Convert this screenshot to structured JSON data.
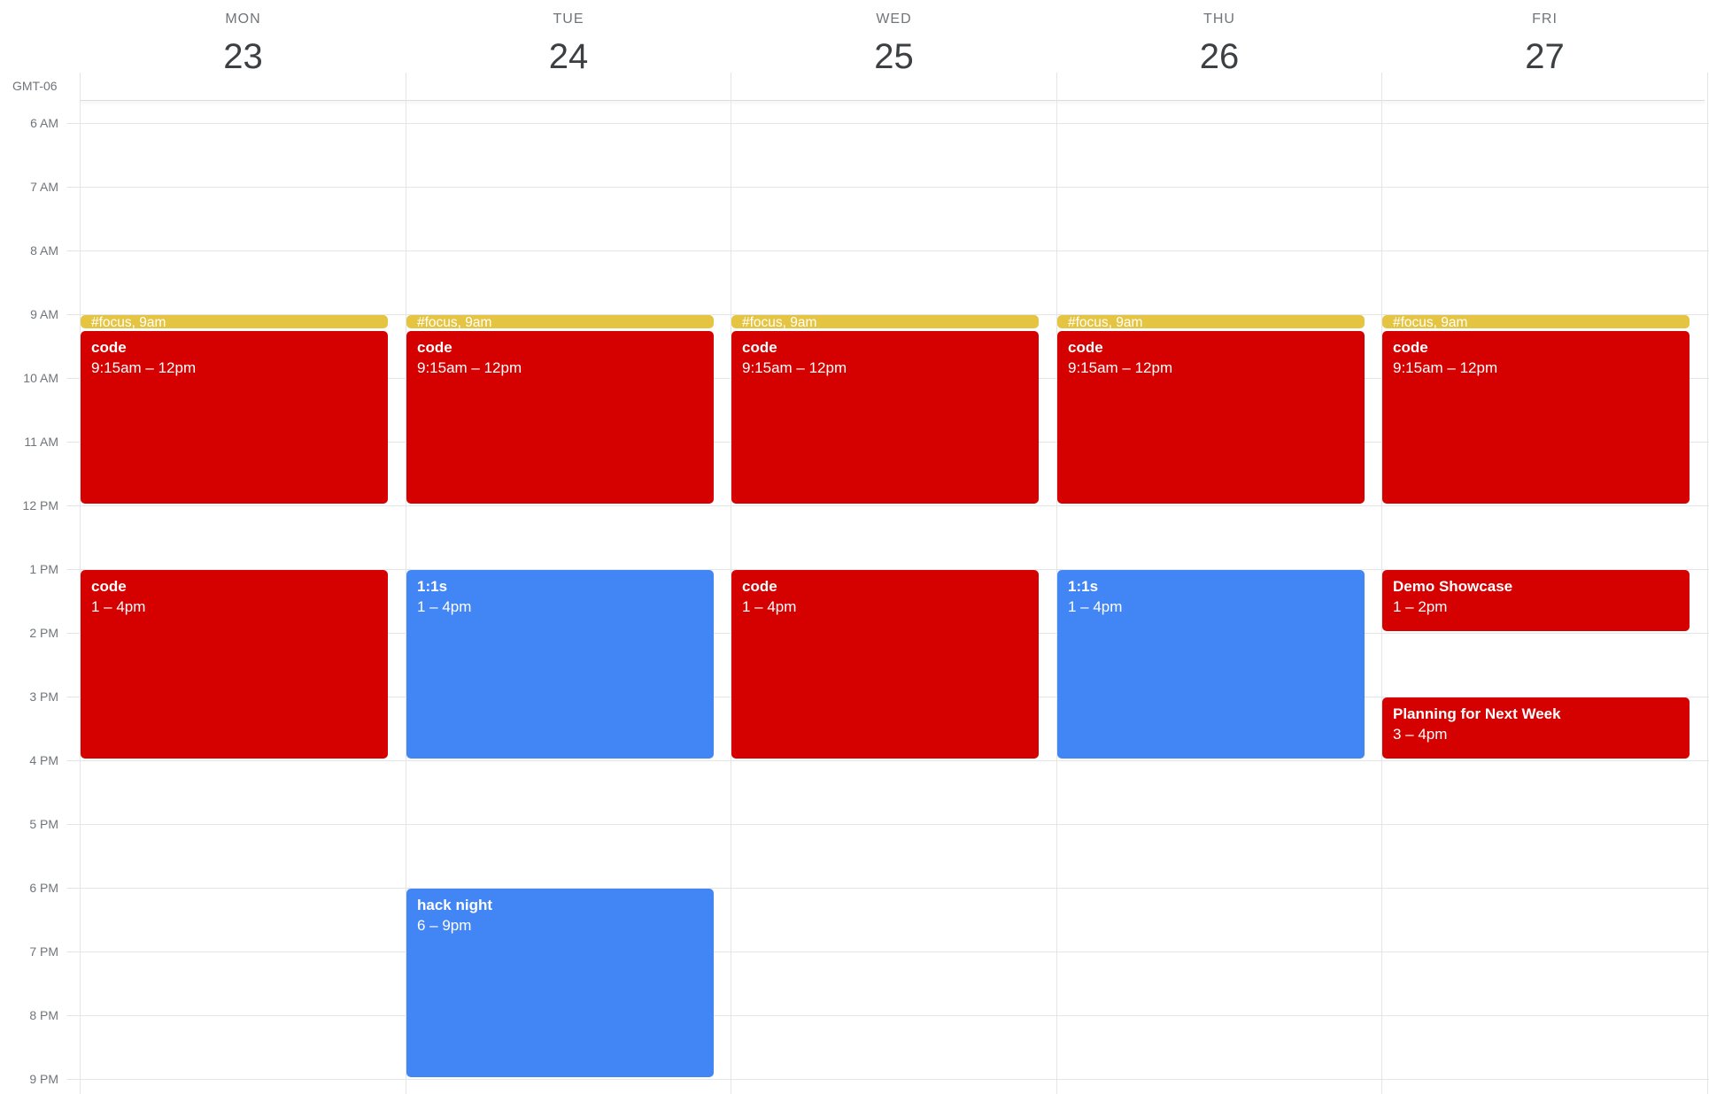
{
  "timezone": "GMT-06",
  "days": [
    {
      "name": "MON",
      "date": "23"
    },
    {
      "name": "TUE",
      "date": "24"
    },
    {
      "name": "WED",
      "date": "25"
    },
    {
      "name": "THU",
      "date": "26"
    },
    {
      "name": "FRI",
      "date": "27"
    }
  ],
  "hours": [
    "6 AM",
    "7 AM",
    "8 AM",
    "9 AM",
    "10 AM",
    "11 AM",
    "12 PM",
    "1 PM",
    "2 PM",
    "3 PM",
    "4 PM",
    "5 PM",
    "6 PM",
    "7 PM",
    "8 PM",
    "9 PM"
  ],
  "colors": {
    "red": "#d50000",
    "blue": "#4285f4",
    "yellow": "#e4c441"
  },
  "events": [
    {
      "day": 0,
      "start": 9,
      "end": 9.25,
      "color": "yellow",
      "label": "#focus, 9am"
    },
    {
      "day": 1,
      "start": 9,
      "end": 9.25,
      "color": "yellow",
      "label": "#focus, 9am"
    },
    {
      "day": 2,
      "start": 9,
      "end": 9.25,
      "color": "yellow",
      "label": "#focus, 9am"
    },
    {
      "day": 3,
      "start": 9,
      "end": 9.25,
      "color": "yellow",
      "label": "#focus, 9am"
    },
    {
      "day": 4,
      "start": 9,
      "end": 9.25,
      "color": "yellow",
      "label": "#focus, 9am"
    },
    {
      "day": 0,
      "start": 9.25,
      "end": 12,
      "color": "red",
      "title": "code",
      "time": "9:15am – 12pm"
    },
    {
      "day": 1,
      "start": 9.25,
      "end": 12,
      "color": "red",
      "title": "code",
      "time": "9:15am – 12pm"
    },
    {
      "day": 2,
      "start": 9.25,
      "end": 12,
      "color": "red",
      "title": "code",
      "time": "9:15am – 12pm"
    },
    {
      "day": 3,
      "start": 9.25,
      "end": 12,
      "color": "red",
      "title": "code",
      "time": "9:15am – 12pm"
    },
    {
      "day": 4,
      "start": 9.25,
      "end": 12,
      "color": "red",
      "title": "code",
      "time": "9:15am – 12pm"
    },
    {
      "day": 0,
      "start": 13,
      "end": 16,
      "color": "red",
      "title": "code",
      "time": "1 – 4pm"
    },
    {
      "day": 1,
      "start": 13,
      "end": 16,
      "color": "blue",
      "title": "1:1s",
      "time": "1 – 4pm"
    },
    {
      "day": 2,
      "start": 13,
      "end": 16,
      "color": "red",
      "title": "code",
      "time": "1 – 4pm"
    },
    {
      "day": 3,
      "start": 13,
      "end": 16,
      "color": "blue",
      "title": "1:1s",
      "time": "1 – 4pm"
    },
    {
      "day": 4,
      "start": 13,
      "end": 14,
      "color": "red",
      "title": "Demo Showcase",
      "time": "1 – 2pm"
    },
    {
      "day": 4,
      "start": 15,
      "end": 16,
      "color": "red",
      "title": "Planning for Next Week",
      "time": "3 – 4pm"
    },
    {
      "day": 1,
      "start": 18,
      "end": 21,
      "color": "blue",
      "title": "hack night",
      "time": "6 – 9pm"
    }
  ]
}
